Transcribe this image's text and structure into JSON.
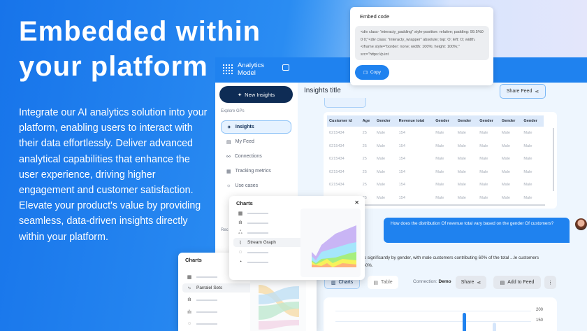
{
  "hero": {
    "title_line1": "Embedded within",
    "title_line2": "your platform",
    "paragraph": "Integrate our AI analytics solution into your platform, enabling users to interact with their data effortlessly. Deliver advanced analytical capabilities that enhance the user experience, driving higher engagement and customer satisfaction. Elevate your product's value by providing seamless, data-driven insights directly within your platform."
  },
  "app": {
    "logo_line1": "Analytics",
    "logo_line2": "Model",
    "new_insights": "New Insights",
    "section": "Explore GPs",
    "nav": [
      {
        "label": "Insights",
        "icon": "sparkle-icon"
      },
      {
        "label": "My Feed",
        "icon": "feed-icon"
      },
      {
        "label": "Connections",
        "icon": "connections-icon"
      },
      {
        "label": "Tracking metrics",
        "icon": "chart-icon"
      },
      {
        "label": "Use cases",
        "icon": "bulb-icon"
      }
    ],
    "recent_label": "Rec"
  },
  "main": {
    "title": "Insights title",
    "share_feed": "Share Feed"
  },
  "table": {
    "headers": [
      "Customer id",
      "Age",
      "Gender",
      "Revenue total",
      "Gender",
      "Gender",
      "Gender",
      "Gender",
      "Gender"
    ],
    "rows": [
      [
        "0215434",
        "25",
        "Male",
        "154",
        "Male",
        "Male",
        "Male",
        "Male",
        "Male"
      ],
      [
        "0215434",
        "25",
        "Male",
        "154",
        "Male",
        "Male",
        "Male",
        "Male",
        "Male"
      ],
      [
        "0215434",
        "25",
        "Male",
        "154",
        "Male",
        "Male",
        "Male",
        "Male",
        "Male"
      ],
      [
        "0215434",
        "25",
        "Male",
        "154",
        "Male",
        "Male",
        "Male",
        "Male",
        "Male"
      ],
      [
        "0215434",
        "25",
        "Male",
        "154",
        "Male",
        "Male",
        "Male",
        "Male",
        "Male"
      ],
      [
        "0215434",
        "25",
        "Male",
        "154",
        "Male",
        "Male",
        "Male",
        "Male",
        "Male"
      ]
    ]
  },
  "embed": {
    "title": "Embed code",
    "code": "<div class- 'interacty_padding\" style-position: relative; padding: 99.5%0 0 0;\"<div class: \"interacty_wrapper\" absolute; top: O; left: O; width. <iframe style=\"border: none; width: 100%; height: 100%;\" src=\"https://p.int",
    "copy": "Copy"
  },
  "chat": {
    "question": "How does the distribution Of revenue total vary based on the gender Of customers?",
    "answer": "...tion varies significantly by gender, with male customers contributing 60% of the total ...le customers contribute 40%."
  },
  "toolbar": {
    "charts": "Charts",
    "table": "Table",
    "connection_label": "Connection:",
    "connection_value": "Demo",
    "share": "Share",
    "add_to_feed": "Add to Feed"
  },
  "chart_axis": {
    "ticks": [
      "200",
      "150"
    ]
  },
  "popup1": {
    "title": "Charts",
    "selected": "Stream Graph"
  },
  "popup2": {
    "title": "Charts",
    "selected": "Parralel Sets"
  },
  "colors": {
    "primary": "#1f82ef",
    "navy": "#0e2c55"
  }
}
